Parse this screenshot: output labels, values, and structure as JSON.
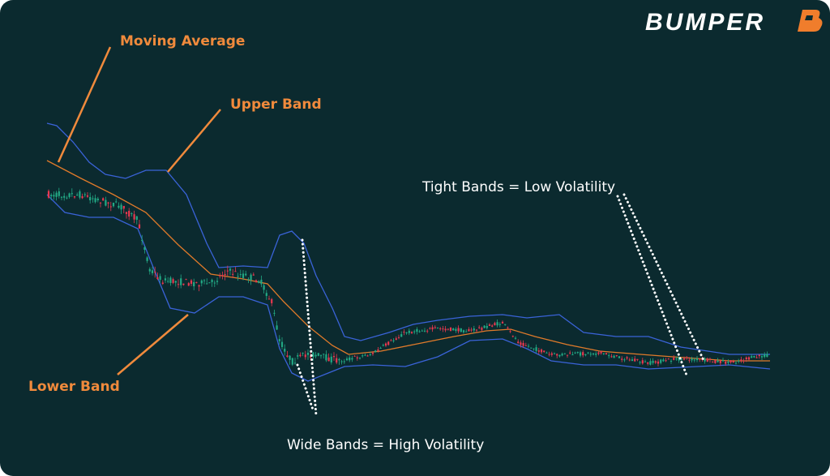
{
  "brand": "BUMPER",
  "annotations": {
    "moving_average": "Moving Average",
    "upper_band": "Upper Band",
    "lower_band": "Lower Band",
    "tight_bands": "Tight Bands = Low Volatility",
    "wide_bands": "Wide Bands = High Volatility"
  }
}
